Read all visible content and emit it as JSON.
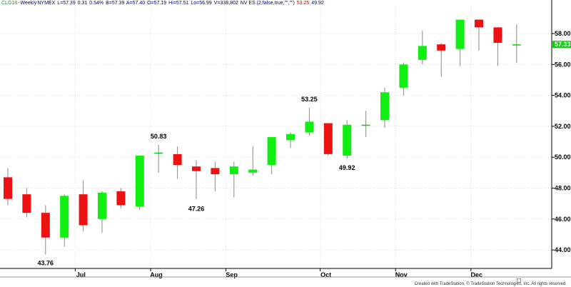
{
  "header": {
    "symbol": "CLG18",
    "interval": "Weekly",
    "exchange": "NYMEX",
    "last": "L=57.39",
    "change": "0.31",
    "change_pct": "0.54%",
    "bid": "B=57.39",
    "ask": "A=57.40",
    "open": "O=57.19",
    "high": "Hi=57.51",
    "low": "Lo=56.99",
    "volume": "V=338,802",
    "study": "NV ES (2,false,true,\"\",\"\")",
    "study_v1": "53.25",
    "study_v2": "49.92"
  },
  "colors": {
    "up": "#11ee11",
    "down": "#ee1111",
    "doji": "#11cc11",
    "wick": "#8a8a8a",
    "grid": "#dcdcdc",
    "last_price_bg": "#11cc11",
    "header_symbol": "#00aa00",
    "header_main": "#000080",
    "header_v1": "#cc0000",
    "header_v2": "#000080"
  },
  "footer": "Created with TradeStation. © TradeStation Technologies, Inc. All rights reserved.",
  "last_price_label": "57.33",
  "chart_data": {
    "type": "candlestick",
    "title": "",
    "xlabel": "",
    "ylabel": "",
    "ylim": [
      42.8,
      59.8
    ],
    "y_ticks": [
      "44.00",
      "46.00",
      "48.00",
      "50.00",
      "52.00",
      "54.00",
      "56.00",
      "58.00"
    ],
    "y_tick_values": [
      44,
      46,
      48,
      50,
      52,
      54,
      56,
      58
    ],
    "grid": true,
    "x_ticks": [
      {
        "label": "Jul",
        "index": 4
      },
      {
        "label": "Aug",
        "index": 8
      },
      {
        "label": "Sep",
        "index": 12
      },
      {
        "label": "Oct",
        "index": 17
      },
      {
        "label": "Nov",
        "index": 21
      },
      {
        "label": "Dec",
        "index": 25
      }
    ],
    "candles": [
      {
        "o": 48.7,
        "h": 49.3,
        "l": 46.9,
        "c": 47.3
      },
      {
        "o": 47.6,
        "h": 48.0,
        "l": 46.1,
        "c": 46.4
      },
      {
        "o": 46.4,
        "h": 46.9,
        "l": 43.7,
        "c": 44.8
      },
      {
        "o": 44.8,
        "h": 47.6,
        "l": 44.2,
        "c": 47.5
      },
      {
        "o": 47.6,
        "h": 48.5,
        "l": 45.2,
        "c": 45.6
      },
      {
        "o": 46.0,
        "h": 47.8,
        "l": 45.1,
        "c": 47.7
      },
      {
        "o": 47.8,
        "h": 48.0,
        "l": 46.7,
        "c": 46.9
      },
      {
        "o": 46.8,
        "h": 50.1,
        "l": 46.6,
        "c": 50.1
      },
      {
        "o": 50.3,
        "h": 50.8,
        "l": 49.0,
        "c": 50.3
      },
      {
        "o": 50.2,
        "h": 50.7,
        "l": 48.6,
        "c": 49.5
      },
      {
        "o": 49.4,
        "h": 49.8,
        "l": 47.3,
        "c": 49.1
      },
      {
        "o": 49.3,
        "h": 49.7,
        "l": 47.8,
        "c": 48.9
      },
      {
        "o": 48.9,
        "h": 49.7,
        "l": 47.4,
        "c": 49.4
      },
      {
        "o": 49.0,
        "h": 50.7,
        "l": 48.8,
        "c": 49.2
      },
      {
        "o": 49.5,
        "h": 51.3,
        "l": 48.9,
        "c": 51.3
      },
      {
        "o": 51.1,
        "h": 51.6,
        "l": 50.6,
        "c": 51.5
      },
      {
        "o": 51.6,
        "h": 53.2,
        "l": 51.4,
        "c": 52.3
      },
      {
        "o": 52.2,
        "h": 52.2,
        "l": 50.1,
        "c": 50.2
      },
      {
        "o": 50.1,
        "h": 52.4,
        "l": 49.9,
        "c": 52.1
      },
      {
        "o": 52.1,
        "h": 53.0,
        "l": 51.3,
        "c": 52.1
      },
      {
        "o": 52.4,
        "h": 54.5,
        "l": 51.9,
        "c": 54.2
      },
      {
        "o": 54.5,
        "h": 56.1,
        "l": 54.0,
        "c": 56.0
      },
      {
        "o": 56.3,
        "h": 58.2,
        "l": 56.0,
        "c": 57.2
      },
      {
        "o": 57.3,
        "h": 57.4,
        "l": 55.2,
        "c": 56.9
      },
      {
        "o": 57.0,
        "h": 58.9,
        "l": 55.9,
        "c": 58.9
      },
      {
        "o": 58.9,
        "h": 58.9,
        "l": 56.9,
        "c": 58.4
      },
      {
        "o": 58.4,
        "h": 58.4,
        "l": 55.9,
        "c": 57.4
      },
      {
        "o": 57.3,
        "h": 58.6,
        "l": 56.1,
        "c": 57.3
      }
    ],
    "annotations": [
      {
        "text": "43.76",
        "index": 2,
        "value": 43.76,
        "position": "below"
      },
      {
        "text": "50.83",
        "index": 8,
        "value": 50.83,
        "position": "above"
      },
      {
        "text": "47.26",
        "index": 10,
        "value": 47.26,
        "position": "below"
      },
      {
        "text": "53.25",
        "index": 16,
        "value": 53.25,
        "position": "above"
      },
      {
        "text": "49.92",
        "index": 18,
        "value": 49.92,
        "position": "below"
      }
    ]
  }
}
